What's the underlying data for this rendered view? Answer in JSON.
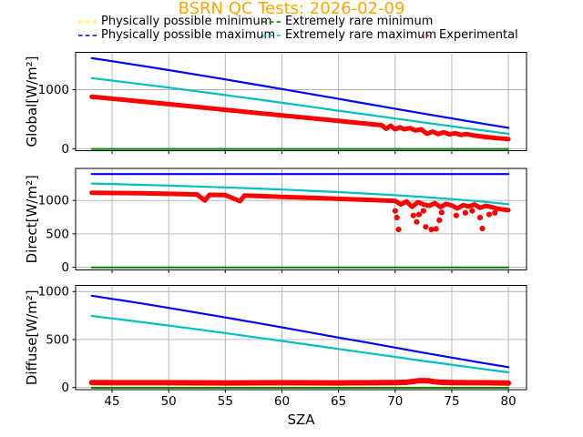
{
  "title": "BSRN QC Tests: 2026-02-09",
  "title_color": "#ffa500",
  "grid_color": "#b0b0b0",
  "axis_color": "#000000",
  "legend": {
    "items": [
      {
        "label": "Physically possible minimum",
        "color": "#ffff00",
        "marker": "dashes"
      },
      {
        "label": "Physically possible maximum",
        "color": "#0000ff",
        "marker": "dashes"
      },
      {
        "label": "Extremely rare minimum",
        "color": "#008000",
        "marker": "dashes"
      },
      {
        "label": "Extremely rare maximum",
        "color": "#00bfbf",
        "marker": "dashes"
      },
      {
        "label": "Experimental",
        "color": "#ff0000",
        "marker": "dots"
      }
    ]
  },
  "chart_data": {
    "type": "line",
    "title": "BSRN QC Tests: 2026-02-09",
    "xlabel": "SZA",
    "xlim": [
      41.78,
      81.6
    ],
    "xticks": [
      45,
      50,
      55,
      60,
      65,
      70,
      75,
      80
    ],
    "grid": true,
    "x_curve": [
      43.2,
      45,
      47.5,
      50,
      52.5,
      55,
      57.5,
      60,
      62.5,
      65,
      67.5,
      70,
      72.5,
      75,
      77.5,
      80
    ],
    "plots": [
      {
        "id": "global",
        "ylabel": "Global[W/m²]",
        "ylim": [
          -31,
          1631
        ],
        "yticks": [
          0,
          1000
        ],
        "series": [
          {
            "name": "Physically possible minimum",
            "color": "#ffff00",
            "w": 1.5,
            "x": [
              43.2,
              80
            ],
            "y": [
              -4,
              -4
            ]
          },
          {
            "name": "Physically possible maximum",
            "color": "#0000ff",
            "w": 2.2,
            "y": [
              1532,
              1481,
              1407,
              1331,
              1253,
              1174,
              1093,
              1011,
              928,
              844,
              761,
              678,
              595,
              513,
              433,
              356
            ]
          },
          {
            "name": "Extremely rare minimum",
            "color": "#008000",
            "w": 2,
            "x": [
              43.2,
              80
            ],
            "y": [
              -2,
              -2
            ]
          },
          {
            "name": "Extremely rare maximum",
            "color": "#00bfbf",
            "w": 2.2,
            "y": [
              1196,
              1154,
              1096,
              1035,
              973,
              909,
              844,
              779,
              712,
              645,
              579,
              512,
              446,
              381,
              317,
              255
            ]
          },
          {
            "name": "Experimental",
            "color": "#ff0000",
            "w": 5,
            "x": [
              43.2,
              45,
              47.5,
              50,
              52.5,
              55,
              57.5,
              60,
              62.5,
              65,
              67.5,
              68.8,
              69.2,
              69.6,
              70,
              70.4,
              70.8,
              71.3,
              71.8,
              72.3,
              72.8,
              73.3,
              73.8,
              74.3,
              74.8,
              75.3,
              75.8,
              76.3,
              77,
              78,
              79,
              80
            ],
            "y": [
              880,
              848,
              802,
              756,
              708,
              660,
              612,
              565,
              520,
              472,
              425,
              400,
              340,
              390,
              330,
              365,
              330,
              350,
              310,
              330,
              255,
              290,
              250,
              280,
              245,
              265,
              235,
              250,
              225,
              200,
              180,
              165
            ]
          }
        ]
      },
      {
        "id": "direct",
        "ylabel": "Direct[W/m²]",
        "ylim": [
          -40,
          1480
        ],
        "yticks": [
          0,
          500,
          1000
        ],
        "series": [
          {
            "name": "Physically possible minimum",
            "color": "#ffff00",
            "w": 1.5,
            "x": [
              43.2,
              80
            ],
            "y": [
              -4,
              -4
            ]
          },
          {
            "name": "Physically possible maximum",
            "color": "#0000ff",
            "w": 2.2,
            "x": [
              43.2,
              80
            ],
            "y": [
              1395,
              1395
            ]
          },
          {
            "name": "Extremely rare minimum",
            "color": "#008000",
            "w": 2,
            "x": [
              43.2,
              80
            ],
            "y": [
              -2,
              -2
            ]
          },
          {
            "name": "Extremely rare maximum",
            "color": "#00bfbf",
            "w": 2.2,
            "y": [
              1254,
              1247,
              1235,
              1223,
              1210,
              1196,
              1180,
              1164,
              1145,
              1126,
              1104,
              1079,
              1052,
              1021,
              986,
              944
            ]
          },
          {
            "name": "Experimental",
            "color": "#ff0000",
            "w": 5,
            "x": [
              43.2,
              45,
              47.5,
              50,
              52.5,
              53.2,
              53.6,
              55,
              56.3,
              56.7,
              57.5,
              60,
              62.5,
              65,
              67.5,
              70,
              70.5,
              71,
              71.5,
              72,
              72.5,
              73,
              73.5,
              74,
              74.5,
              75,
              75.5,
              76,
              76.5,
              77,
              77.5,
              78,
              78.5,
              79,
              79.5,
              80
            ],
            "y": [
              1115,
              1112,
              1108,
              1100,
              1090,
              1000,
              1085,
              1080,
              990,
              1075,
              1070,
              1055,
              1040,
              1025,
              1010,
              995,
              940,
              985,
              905,
              975,
              940,
              920,
              960,
              900,
              950,
              925,
              880,
              930,
              910,
              940,
              890,
              920,
              900,
              880,
              865,
              855
            ]
          }
        ],
        "scatter": {
          "name": "Experimental outliers",
          "color": "#ff0000",
          "points": [
            [
              70,
              845
            ],
            [
              70.15,
              745
            ],
            [
              70.3,
              565
            ],
            [
              71.6,
              775
            ],
            [
              71.9,
              680
            ],
            [
              72.1,
              790
            ],
            [
              72.5,
              845
            ],
            [
              72.7,
              605
            ],
            [
              73.2,
              565
            ],
            [
              73.6,
              575
            ],
            [
              73.9,
              705
            ],
            [
              74.1,
              820
            ],
            [
              75.4,
              775
            ],
            [
              76.2,
              815
            ],
            [
              76.8,
              845
            ],
            [
              77.5,
              745
            ],
            [
              77.7,
              580
            ],
            [
              78.3,
              790
            ],
            [
              78.8,
              815
            ]
          ]
        }
      },
      {
        "id": "diffuse",
        "ylabel": "Diffuse[W/m²]",
        "ylim": [
          -22,
          1064
        ],
        "yticks": [
          0,
          500,
          1000
        ],
        "series": [
          {
            "name": "Physically possible minimum",
            "color": "#ffff00",
            "w": 1.5,
            "x": [
              43.2,
              80
            ],
            "y": [
              -4,
              -4
            ]
          },
          {
            "name": "Physically possible maximum",
            "color": "#0000ff",
            "w": 2.2,
            "y": [
              957,
              924,
              878,
              830,
              780,
              730,
              679,
              627,
              574,
              521,
              469,
              416,
              363,
              312,
              261,
              212
            ]
          },
          {
            "name": "Extremely rare minimum",
            "color": "#008000",
            "w": 2,
            "x": [
              43.2,
              80
            ],
            "y": [
              -2,
              -2
            ]
          },
          {
            "name": "Extremely rare maximum",
            "color": "#00bfbf",
            "w": 2.2,
            "y": [
              746,
              720,
              684,
              646,
              607,
              567,
              526,
              485,
              444,
              402,
              360,
              319,
              277,
              237,
              197,
              158
            ]
          },
          {
            "name": "Experimental",
            "color": "#ff0000",
            "w": 6,
            "x": [
              43.2,
              45,
              50,
              55,
              60,
              65,
              68,
              70,
              71,
              71.5,
              72,
              72.5,
              73,
              73.5,
              74,
              75,
              76,
              78,
              80
            ],
            "y": [
              52,
              50,
              50,
              48,
              50,
              48,
              50,
              52,
              55,
              62,
              70,
              72,
              70,
              60,
              55,
              52,
              50,
              50,
              46
            ]
          }
        ]
      }
    ]
  }
}
